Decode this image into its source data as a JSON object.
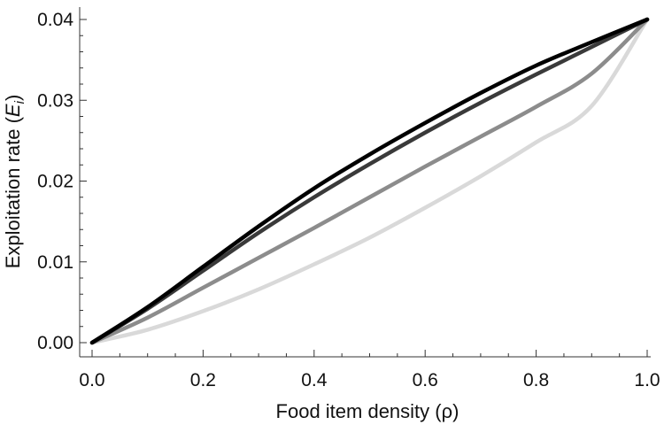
{
  "chart_data": {
    "type": "line",
    "title": "",
    "xlabel": "Food item density (ρ)",
    "ylabel_prefix": "Exploitation rate (",
    "ylabel_symbol": "E",
    "ylabel_subscript": "i",
    "ylabel_suffix": ")",
    "xlim": [
      0,
      1
    ],
    "ylim": [
      0,
      0.04
    ],
    "x_ticks": [
      "0.0",
      "0.2",
      "0.4",
      "0.6",
      "0.8",
      "1.0"
    ],
    "y_ticks": [
      "0.00",
      "0.01",
      "0.02",
      "0.03",
      "0.04"
    ],
    "grid": false,
    "legend": "none",
    "x": [
      0,
      0.1,
      0.2,
      0.3,
      0.4,
      0.5,
      0.6,
      0.7,
      0.8,
      0.9,
      1.0
    ],
    "series": [
      {
        "color": "#d9d9d9",
        "values": [
          0,
          0.0016,
          0.0039,
          0.0066,
          0.0097,
          0.013,
          0.0167,
          0.0206,
          0.0248,
          0.0293,
          0.04
        ]
      },
      {
        "color": "#8c8c8c",
        "values": [
          0,
          0.0031,
          0.0068,
          0.0105,
          0.0142,
          0.018,
          0.0218,
          0.0255,
          0.0292,
          0.0333,
          0.04
        ]
      },
      {
        "color": "#3a3a3a",
        "values": [
          0,
          0.0042,
          0.0089,
          0.0136,
          0.018,
          0.0221,
          0.026,
          0.0297,
          0.0332,
          0.0366,
          0.04
        ]
      },
      {
        "color": "#000000",
        "values": [
          0,
          0.0044,
          0.0094,
          0.0144,
          0.0191,
          0.0233,
          0.0272,
          0.0309,
          0.0343,
          0.0372,
          0.04
        ]
      }
    ]
  }
}
